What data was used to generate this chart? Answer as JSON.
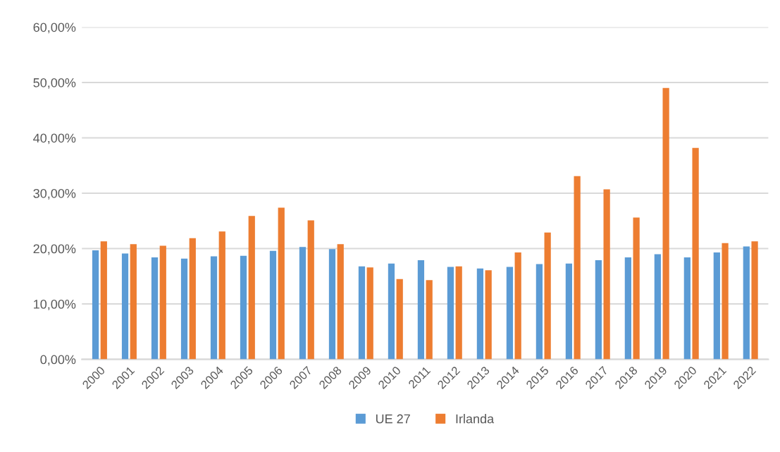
{
  "chart_data": {
    "type": "bar",
    "categories": [
      "2000",
      "2001",
      "2002",
      "2003",
      "2004",
      "2005",
      "2006",
      "2007",
      "2008",
      "2009",
      "2010",
      "2011",
      "2012",
      "2013",
      "2014",
      "2015",
      "2016",
      "2017",
      "2018",
      "2019",
      "2020",
      "2021",
      "2022"
    ],
    "series": [
      {
        "name": "UE 27",
        "color": "#5b9bd5",
        "values": [
          19.7,
          19.1,
          18.4,
          18.2,
          18.6,
          18.7,
          19.6,
          20.3,
          19.9,
          16.8,
          17.3,
          17.9,
          16.7,
          16.4,
          16.7,
          17.2,
          17.3,
          17.9,
          18.4,
          19.0,
          18.4,
          19.3,
          20.4
        ]
      },
      {
        "name": "Irlanda",
        "color": "#ed7d31",
        "values": [
          21.3,
          20.8,
          20.5,
          21.9,
          23.1,
          25.9,
          27.4,
          25.1,
          20.8,
          16.6,
          14.5,
          14.3,
          16.8,
          16.1,
          19.3,
          22.9,
          33.1,
          30.7,
          25.6,
          49.0,
          38.2,
          21.0,
          21.3
        ]
      }
    ],
    "ylim": [
      0,
      60
    ],
    "yticks": [
      {
        "value": 0,
        "label": "0,00%"
      },
      {
        "value": 10,
        "label": "10,00%"
      },
      {
        "value": 20,
        "label": "20,00%"
      },
      {
        "value": 30,
        "label": "30,00%"
      },
      {
        "value": 40,
        "label": "40,00%"
      },
      {
        "value": 50,
        "label": "50,00%"
      },
      {
        "value": 60,
        "label": "60,00%"
      }
    ],
    "grid": "y",
    "legend": "bottom"
  }
}
